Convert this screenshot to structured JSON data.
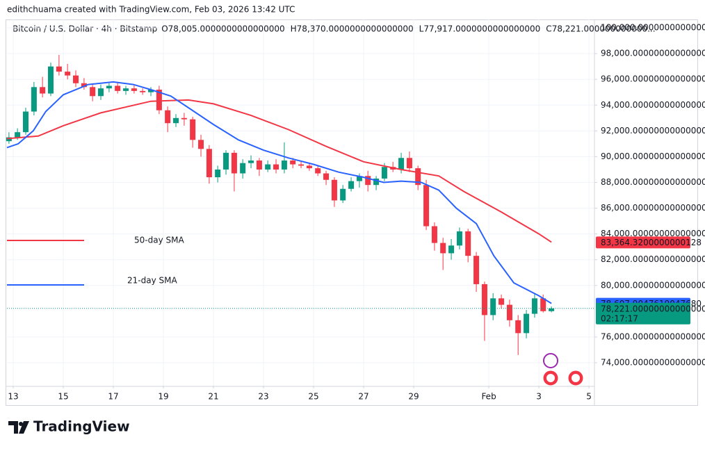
{
  "header": {
    "credit": "edithchuama created with TradingView.com, Feb 03, 2026 13:42 UTC"
  },
  "footer": {
    "brand": "TradingView"
  },
  "chart_data": {
    "type": "candlestick",
    "title": "Bitcoin / U.S. Dollar · 4h · Bitstamp",
    "ohlc_labels": [
      {
        "key": "O",
        "label": "78,005.0000000000000000"
      },
      {
        "key": "H",
        "label": "78,370.0000000000000000"
      },
      {
        "key": "L",
        "label": "77,917.0000000000000000"
      },
      {
        "key": "C",
        "label": "78,221.000000000000..."
      }
    ],
    "up_color": "#089981",
    "down_color": "#f23645",
    "x": [
      12.83,
      13.17,
      13.5,
      13.83,
      14.17,
      14.5,
      14.83,
      15.17,
      15.5,
      15.83,
      16.17,
      16.5,
      16.83,
      17.17,
      17.5,
      17.83,
      18.17,
      18.5,
      18.83,
      19.17,
      19.5,
      19.83,
      20.17,
      20.5,
      20.83,
      21.17,
      21.5,
      21.83,
      22.17,
      22.5,
      22.83,
      23.17,
      23.5,
      23.83,
      24.17,
      24.5,
      24.83,
      25.17,
      25.5,
      25.83,
      26.17,
      26.5,
      26.83,
      27.17,
      27.5,
      27.83,
      28.17,
      28.5,
      28.83,
      29.17,
      29.5,
      29.83,
      30.17,
      30.5,
      30.83,
      31.17,
      31.5,
      31.83,
      32.17,
      32.5,
      32.83,
      33.17,
      33.5,
      33.83,
      34.17,
      34.5
    ],
    "candles": [
      [
        91200,
        91900,
        91000,
        91500
      ],
      [
        91500,
        92200,
        91300,
        91900
      ],
      [
        91900,
        93800,
        91700,
        93500
      ],
      [
        93500,
        95800,
        93200,
        95400
      ],
      [
        95400,
        96200,
        94600,
        94900
      ],
      [
        94900,
        97300,
        94700,
        97000
      ],
      [
        97000,
        97900,
        96300,
        96600
      ],
      [
        96600,
        97200,
        96000,
        96300
      ],
      [
        96300,
        96700,
        95400,
        95700
      ],
      [
        95700,
        96100,
        95200,
        95400
      ],
      [
        95400,
        95700,
        94300,
        94700
      ],
      [
        94700,
        95600,
        94400,
        95300
      ],
      [
        95300,
        95700,
        95000,
        95500
      ],
      [
        95500,
        95800,
        94900,
        95100
      ],
      [
        95100,
        95500,
        94800,
        95300
      ],
      [
        95300,
        95600,
        94900,
        95100
      ],
      [
        95100,
        95300,
        94800,
        95000
      ],
      [
        95000,
        95400,
        94700,
        95200
      ],
      [
        95200,
        95500,
        93300,
        93600
      ],
      [
        93600,
        93900,
        91900,
        92600
      ],
      [
        92600,
        93300,
        92300,
        93000
      ],
      [
        93000,
        93400,
        92400,
        92900
      ],
      [
        92900,
        93100,
        90700,
        91300
      ],
      [
        91300,
        91700,
        90000,
        90600
      ],
      [
        90600,
        90900,
        87900,
        88400
      ],
      [
        88400,
        89300,
        88000,
        89000
      ],
      [
        89000,
        90500,
        88600,
        90300
      ],
      [
        90300,
        90500,
        87300,
        88700
      ],
      [
        88700,
        89800,
        88300,
        89500
      ],
      [
        89500,
        90100,
        89100,
        89700
      ],
      [
        89700,
        89900,
        88500,
        89000
      ],
      [
        89000,
        89700,
        88800,
        89400
      ],
      [
        89400,
        89800,
        88700,
        89000
      ],
      [
        89000,
        91100,
        88700,
        89700
      ],
      [
        89700,
        89900,
        89100,
        89400
      ],
      [
        89400,
        89600,
        89100,
        89300
      ],
      [
        89300,
        89500,
        88900,
        89100
      ],
      [
        89100,
        89300,
        88500,
        88700
      ],
      [
        88700,
        88900,
        87800,
        88200
      ],
      [
        88200,
        88400,
        86100,
        86600
      ],
      [
        86600,
        87800,
        86400,
        87500
      ],
      [
        87500,
        88400,
        87300,
        88100
      ],
      [
        88100,
        88700,
        87600,
        88500
      ],
      [
        88500,
        88900,
        87300,
        87800
      ],
      [
        87800,
        88500,
        87400,
        88300
      ],
      [
        88300,
        89500,
        88100,
        89200
      ],
      [
        89200,
        89600,
        88800,
        89000
      ],
      [
        89000,
        90300,
        88700,
        89900
      ],
      [
        89900,
        90400,
        88800,
        89100
      ],
      [
        89100,
        89300,
        87400,
        87800
      ],
      [
        87800,
        88200,
        84300,
        84600
      ],
      [
        84600,
        84900,
        82700,
        83300
      ],
      [
        83300,
        83700,
        81200,
        82500
      ],
      [
        82500,
        83600,
        82000,
        83100
      ],
      [
        83100,
        84500,
        82800,
        84200
      ],
      [
        84200,
        84400,
        81800,
        82300
      ],
      [
        82300,
        82600,
        79500,
        80100
      ],
      [
        80100,
        80300,
        75700,
        77700
      ],
      [
        77700,
        79400,
        77300,
        79000
      ],
      [
        79000,
        79300,
        78200,
        78500
      ],
      [
        78500,
        78900,
        76800,
        77300
      ],
      [
        77300,
        77700,
        74600,
        76300
      ],
      [
        76300,
        78100,
        75900,
        77800
      ],
      [
        77800,
        79400,
        77500,
        79000
      ],
      [
        79000,
        79300,
        77900,
        78005
      ],
      [
        78005,
        78370,
        77917,
        78221
      ]
    ],
    "series": [
      {
        "name": "50-day SMA",
        "color": "#f23645",
        "x": [
          12.75,
          14,
          15,
          16.5,
          18.5,
          20,
          21,
          22.5,
          24,
          25.5,
          27,
          28.5,
          30,
          31,
          32.5,
          34,
          34.5
        ],
        "values": [
          91400,
          91600,
          92400,
          93400,
          94300,
          94400,
          94100,
          93200,
          92100,
          90800,
          89600,
          89000,
          88500,
          87300,
          85700,
          84000,
          83364.32
        ],
        "last_label": "83,364.3200000000128"
      },
      {
        "name": "21-day SMA",
        "color": "#2962ff",
        "x": [
          12.75,
          13.2,
          13.8,
          14.3,
          15,
          16,
          17,
          17.8,
          18.5,
          19.3,
          20,
          21,
          22,
          23,
          24,
          25,
          26,
          27,
          27.8,
          28.5,
          29.3,
          30,
          30.7,
          31.5,
          32.2,
          33,
          34,
          34.5
        ],
        "values": [
          90700,
          91000,
          92000,
          93500,
          94800,
          95600,
          95800,
          95600,
          95200,
          94700,
          93800,
          92500,
          91300,
          90500,
          89900,
          89400,
          88800,
          88400,
          88000,
          88100,
          88000,
          87400,
          86000,
          84800,
          82300,
          80200,
          79200,
          78607.90476190476
        ],
        "last_label": "78,607.9047619047680"
      }
    ],
    "last_price": {
      "value": 78221,
      "label": "78,221.0000000000000000",
      "countdown": "02:17:17",
      "color": "#089981"
    },
    "xlim": [
      12.75,
      36.22
    ],
    "xticks": [
      13,
      15,
      17,
      19,
      21,
      23,
      25,
      27,
      29,
      {
        "value": 32,
        "label": "Feb"
      },
      {
        "value": 34,
        "label": "3"
      },
      {
        "value": 36,
        "label": "5"
      }
    ],
    "ylim": [
      72220,
      100650
    ],
    "yticks": [
      {
        "value": 100000,
        "label": "100,000.0000000000000000"
      },
      {
        "value": 98000,
        "label": "98,000.0000000000000000"
      },
      {
        "value": 96000,
        "label": "96,000.0000000000000000"
      },
      {
        "value": 94000,
        "label": "94,000.0000000000000000"
      },
      {
        "value": 92000,
        "label": "92,000.0000000000000000"
      },
      {
        "value": 90000,
        "label": "90,000.0000000000000000"
      },
      {
        "value": 88000,
        "label": "88,000.0000000000000000"
      },
      {
        "value": 86000,
        "label": "86,000.0000000000000000"
      },
      {
        "value": 84000,
        "label": "84,000.0000000000000000"
      },
      {
        "value": 82000,
        "label": "82,000.0000000000000000"
      },
      {
        "value": 80000,
        "label": "80,000.0000000000000000"
      },
      {
        "value": 76000,
        "label": "76,000.0000000000000000"
      },
      {
        "value": 74000,
        "label": "74,000.0000000000000000"
      }
    ],
    "grid": true
  }
}
